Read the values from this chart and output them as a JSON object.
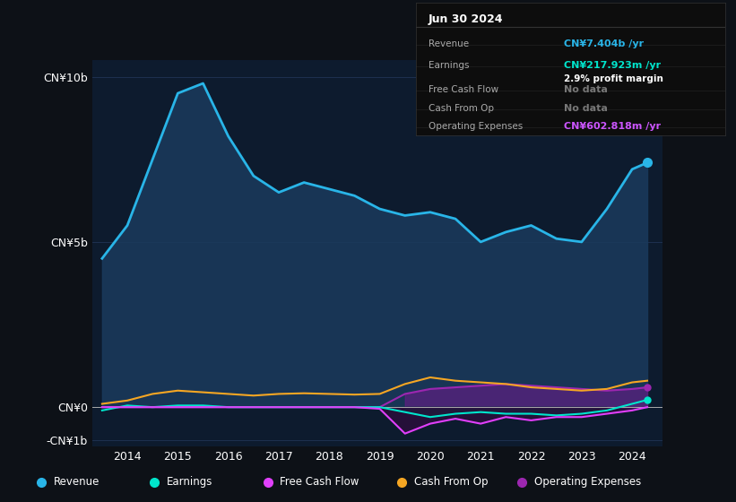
{
  "bg_color": "#0d1117",
  "plot_bg_color": "#0d1b2e",
  "grid_color": "#1e3050",
  "years": [
    2013.5,
    2014,
    2014.5,
    2015,
    2015.5,
    2016,
    2016.5,
    2017,
    2017.5,
    2018,
    2018.5,
    2019,
    2019.5,
    2020,
    2020.5,
    2021,
    2021.5,
    2022,
    2022.5,
    2023,
    2023.5,
    2024,
    2024.3
  ],
  "revenue": [
    4.5,
    5.5,
    7.5,
    9.5,
    9.8,
    8.2,
    7.0,
    6.5,
    6.8,
    6.6,
    6.4,
    6.0,
    5.8,
    5.9,
    5.7,
    5.0,
    5.3,
    5.5,
    5.1,
    5.0,
    6.0,
    7.2,
    7.4
  ],
  "earnings": [
    -0.1,
    0.05,
    0.0,
    0.05,
    0.05,
    0.0,
    0.0,
    0.0,
    0.0,
    0.0,
    0.0,
    0.0,
    -0.15,
    -0.3,
    -0.2,
    -0.15,
    -0.2,
    -0.2,
    -0.25,
    -0.2,
    -0.1,
    0.1,
    0.22
  ],
  "free_cash_flow": [
    0.0,
    0.0,
    0.0,
    0.0,
    0.0,
    0.0,
    0.0,
    0.0,
    0.0,
    0.0,
    0.0,
    -0.05,
    -0.8,
    -0.5,
    -0.35,
    -0.5,
    -0.3,
    -0.4,
    -0.3,
    -0.3,
    -0.2,
    -0.1,
    0.0
  ],
  "cash_from_op": [
    0.1,
    0.2,
    0.4,
    0.5,
    0.45,
    0.4,
    0.35,
    0.4,
    0.42,
    0.4,
    0.38,
    0.4,
    0.7,
    0.9,
    0.8,
    0.75,
    0.7,
    0.6,
    0.55,
    0.5,
    0.55,
    0.75,
    0.8
  ],
  "operating_expenses": [
    0.0,
    0.0,
    0.0,
    0.0,
    0.0,
    0.0,
    0.0,
    0.0,
    0.0,
    0.0,
    0.0,
    0.0,
    0.4,
    0.55,
    0.6,
    0.65,
    0.7,
    0.65,
    0.6,
    0.55,
    0.5,
    0.55,
    0.6
  ],
  "revenue_color": "#29b5e8",
  "revenue_fill": "#1a3a5c",
  "earnings_color": "#00e5cc",
  "free_cash_flow_color": "#e040fb",
  "cash_from_op_color": "#f5a623",
  "operating_expenses_color": "#9c27b0",
  "operating_expenses_fill": "#6a1b8a",
  "ylim": [
    -1.2,
    10.5
  ],
  "yticks": [
    -1,
    0,
    5,
    10
  ],
  "ytick_labels": [
    "-CN¥1b",
    "CN¥0",
    "CN¥5b",
    "CN¥10b"
  ],
  "xlabel_years": [
    2014,
    2015,
    2016,
    2017,
    2018,
    2019,
    2020,
    2021,
    2022,
    2023,
    2024
  ],
  "info_box": {
    "date": "Jun 30 2024",
    "revenue_label": "Revenue",
    "revenue_value": "CN¥7.404b /yr",
    "revenue_color": "#29b5e8",
    "earnings_label": "Earnings",
    "earnings_value": "CN¥217.923m /yr",
    "earnings_color": "#00e5cc",
    "margin_text": "2.9% profit margin",
    "fcf_label": "Free Cash Flow",
    "fcf_value": "No data",
    "cashop_label": "Cash From Op",
    "cashop_value": "No data",
    "opex_label": "Operating Expenses",
    "opex_value": "CN¥602.818m /yr",
    "opex_color": "#cc55ff"
  },
  "legend_items": [
    {
      "label": "Revenue",
      "color": "#29b5e8"
    },
    {
      "label": "Earnings",
      "color": "#00e5cc"
    },
    {
      "label": "Free Cash Flow",
      "color": "#e040fb"
    },
    {
      "label": "Cash From Op",
      "color": "#f5a623"
    },
    {
      "label": "Operating Expenses",
      "color": "#9c27b0"
    }
  ]
}
